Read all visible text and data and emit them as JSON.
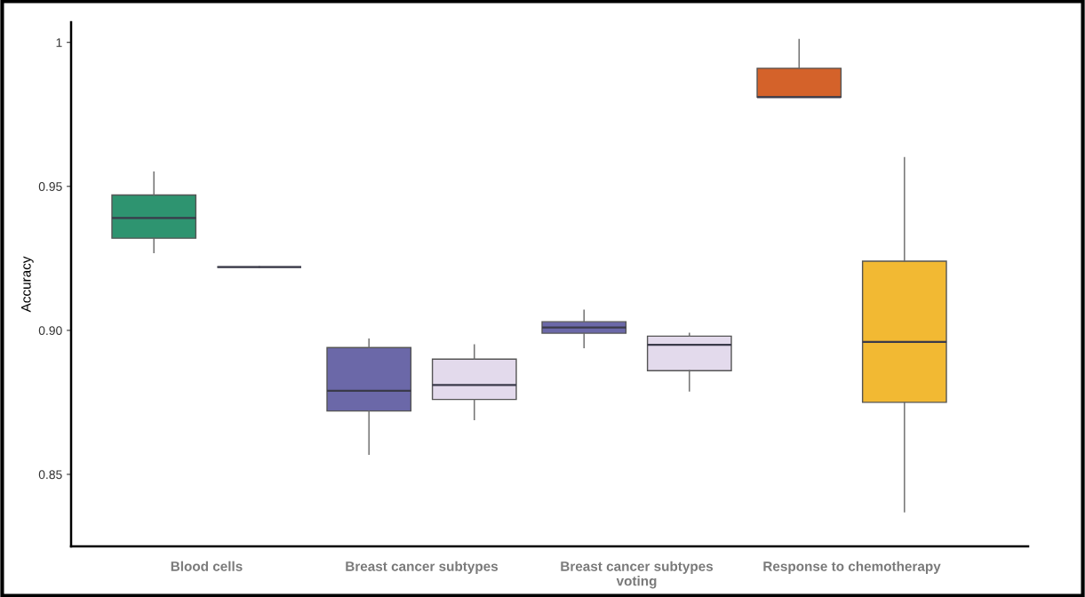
{
  "chart_data": {
    "type": "box",
    "ylabel": "Accuracy",
    "categories": [
      "Blood cells",
      "Breast cancer subtypes",
      "Breast cancer subtypes\nvoting",
      "Response to chemotherapy"
    ],
    "ylim": [
      0.825,
      1.007
    ],
    "yticks": [
      0.85,
      {
        "value": 0.9,
        "label": "0.90"
      },
      0.95,
      1
    ],
    "grid": false,
    "series": [
      {
        "colors": [
          "#2e9470",
          "#6b68a8",
          "#6b68a8",
          "#d4622a"
        ],
        "boxes": [
          {
            "low": 0.927,
            "q1": 0.932,
            "median": 0.939,
            "q3": 0.947,
            "high": 0.955
          },
          {
            "low": 0.857,
            "q1": 0.872,
            "median": 0.879,
            "q3": 0.894,
            "high": 0.897
          },
          {
            "low": 0.894,
            "q1": 0.899,
            "median": 0.901,
            "q3": 0.903,
            "high": 0.907
          },
          {
            "low": 0.981,
            "q1": 0.981,
            "median": 0.981,
            "q3": 0.991,
            "high": 1.001
          }
        ]
      },
      {
        "colors": [
          "#555555",
          "#e3daec",
          "#e3daec",
          "#f2b933"
        ],
        "boxes": [
          {
            "low": 0.922,
            "q1": 0.922,
            "median": 0.922,
            "q3": 0.922,
            "high": 0.922
          },
          {
            "low": 0.869,
            "q1": 0.876,
            "median": 0.881,
            "q3": 0.89,
            "high": 0.895
          },
          {
            "low": 0.879,
            "q1": 0.886,
            "median": 0.895,
            "q3": 0.898,
            "high": 0.899
          },
          {
            "low": 0.837,
            "q1": 0.875,
            "median": 0.896,
            "q3": 0.924,
            "high": 0.96
          }
        ]
      }
    ]
  }
}
